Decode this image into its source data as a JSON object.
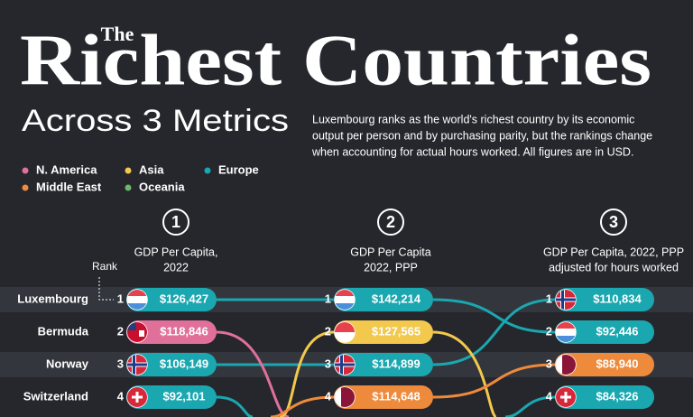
{
  "header": {
    "kicker": "The",
    "title": "Richest Countries",
    "subtitle": "Across 3 Metrics",
    "description": [
      "Luxembourg ranks as the world's richest country by its economic",
      "output per person and by purchasing parity, but the rankings change",
      "when accounting for actual hours worked. All figures are in USD."
    ]
  },
  "legend": [
    {
      "label": "N. America",
      "color": "#e0709a"
    },
    {
      "label": "Asia",
      "color": "#f2c94c"
    },
    {
      "label": "Europe",
      "color": "#1ba7b0"
    },
    {
      "label": "Middle East",
      "color": "#ee8a3c"
    },
    {
      "label": "Oceania",
      "color": "#6cb86a"
    }
  ],
  "rank_label": "Rank",
  "row_labels": [
    "Luxembourg",
    "Bermuda",
    "Norway",
    "Switzerland"
  ],
  "columns": [
    {
      "number": "1",
      "heading": [
        "GDP Per Capita,",
        "2022"
      ],
      "entries": [
        {
          "rank": "1",
          "value": "$126,427",
          "color": "#1ba7b0",
          "flag": "lux"
        },
        {
          "rank": "2",
          "value": "$118,846",
          "color": "#e0709a",
          "flag": "ber"
        },
        {
          "rank": "3",
          "value": "$106,149",
          "color": "#1ba7b0",
          "flag": "nor"
        },
        {
          "rank": "4",
          "value": "$92,101",
          "color": "#1ba7b0",
          "flag": "sui"
        }
      ]
    },
    {
      "number": "2",
      "heading": [
        "GDP Per Capita",
        "2022, PPP"
      ],
      "entries": [
        {
          "rank": "1",
          "value": "$142,214",
          "color": "#1ba7b0",
          "flag": "lux"
        },
        {
          "rank": "2",
          "value": "$127,565",
          "color": "#f2c94c",
          "flag": "sgp"
        },
        {
          "rank": "3",
          "value": "$114,899",
          "color": "#1ba7b0",
          "flag": "nor"
        },
        {
          "rank": "4",
          "value": "$114,648",
          "color": "#ee8a3c",
          "flag": "qat"
        }
      ]
    },
    {
      "number": "3",
      "heading": [
        "GDP Per Capita, 2022, PPP",
        "adjusted for hours worked"
      ],
      "entries": [
        {
          "rank": "1",
          "value": "$110,834",
          "color": "#1ba7b0",
          "flag": "nor"
        },
        {
          "rank": "2",
          "value": "$92,446",
          "color": "#1ba7b0",
          "flag": "lux"
        },
        {
          "rank": "3",
          "value": "$88,940",
          "color": "#ee8a3c",
          "flag": "qat"
        },
        {
          "rank": "4",
          "value": "$84,326",
          "color": "#1ba7b0",
          "flag": "sui"
        }
      ]
    }
  ]
}
